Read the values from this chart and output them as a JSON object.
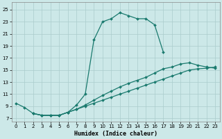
{
  "xlabel": "Humidex (Indice chaleur)",
  "bg_color": "#cce8e8",
  "grid_color": "#aacccc",
  "line_color": "#1a7a6e",
  "xlim": [
    -0.5,
    23.5
  ],
  "ylim": [
    6.5,
    26.2
  ],
  "xticks": [
    0,
    1,
    2,
    3,
    4,
    5,
    6,
    7,
    8,
    9,
    10,
    11,
    12,
    13,
    14,
    15,
    16,
    17,
    18,
    19,
    20,
    21,
    22,
    23
  ],
  "yticks": [
    7,
    9,
    11,
    13,
    15,
    17,
    19,
    21,
    23,
    25
  ],
  "curve_peak_x": [
    2,
    3,
    4,
    5,
    6,
    7,
    8,
    9,
    10,
    11,
    12,
    13,
    14,
    15,
    16,
    17
  ],
  "curve_peak_y": [
    7.8,
    7.5,
    7.5,
    7.5,
    8.0,
    9.2,
    11.0,
    20.0,
    23.0,
    23.5,
    24.5,
    24.0,
    23.5,
    23.5,
    22.5,
    18.0
  ],
  "curve_line1_x": [
    0,
    1,
    2,
    3,
    4,
    5,
    6,
    7,
    8,
    9,
    10,
    11,
    12,
    13,
    14,
    15,
    16,
    17,
    18,
    19,
    20,
    21,
    22,
    23
  ],
  "curve_line1_y": [
    9.5,
    8.8,
    7.8,
    7.5,
    7.5,
    7.5,
    8.0,
    8.5,
    9.2,
    10.0,
    10.8,
    11.5,
    12.2,
    12.8,
    13.3,
    13.8,
    14.5,
    15.2,
    15.5,
    16.0,
    16.2,
    15.8,
    15.5,
    15.3
  ],
  "curve_line2_x": [
    2,
    3,
    4,
    5,
    6,
    7,
    8,
    9,
    10,
    11,
    12,
    13,
    14,
    15,
    16,
    17,
    18,
    19,
    20,
    21,
    22,
    23
  ],
  "curve_line2_y": [
    7.8,
    7.5,
    7.5,
    7.5,
    8.0,
    8.5,
    9.0,
    9.5,
    10.0,
    10.5,
    11.0,
    11.5,
    12.0,
    12.5,
    13.0,
    13.5,
    14.0,
    14.5,
    15.0,
    15.2,
    15.3,
    15.5
  ]
}
